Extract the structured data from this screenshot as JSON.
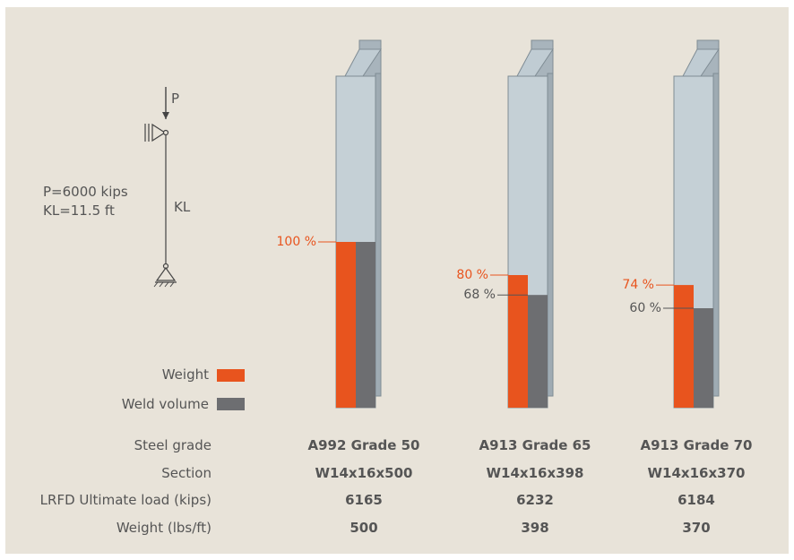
{
  "load_diagram": {
    "load_label": "P",
    "length_label": "KL",
    "params": [
      "P=6000 kips",
      "KL=11.5 ft"
    ]
  },
  "legend": {
    "weight_label": "Weight",
    "weld_label": "Weld volume",
    "weight_color": "#e8541e",
    "weld_color": "#6d6e71"
  },
  "row_labels": [
    "Steel grade",
    "Section",
    "LRFD Ultimate load (kips)",
    "Weight (lbs/ft)"
  ],
  "columns": [
    {
      "grade": "A992 Grade 50",
      "section": "W14x16x500",
      "load": "6165",
      "weight": "500",
      "weight_pct": 100,
      "weight_pct_label": "100 %",
      "weld_pct": 100,
      "weld_pct_label": ""
    },
    {
      "grade": "A913 Grade 65",
      "section": "W14x16x398",
      "load": "6232",
      "weight": "398",
      "weight_pct": 80,
      "weight_pct_label": "80 %",
      "weld_pct": 68,
      "weld_pct_label": "68 %"
    },
    {
      "grade": "A913 Grade 70",
      "section": "W14x16x370",
      "load": "6184",
      "weight": "370",
      "weight_pct": 74,
      "weight_pct_label": "74 %",
      "weld_pct": 60,
      "weld_pct_label": "60 %"
    }
  ]
}
